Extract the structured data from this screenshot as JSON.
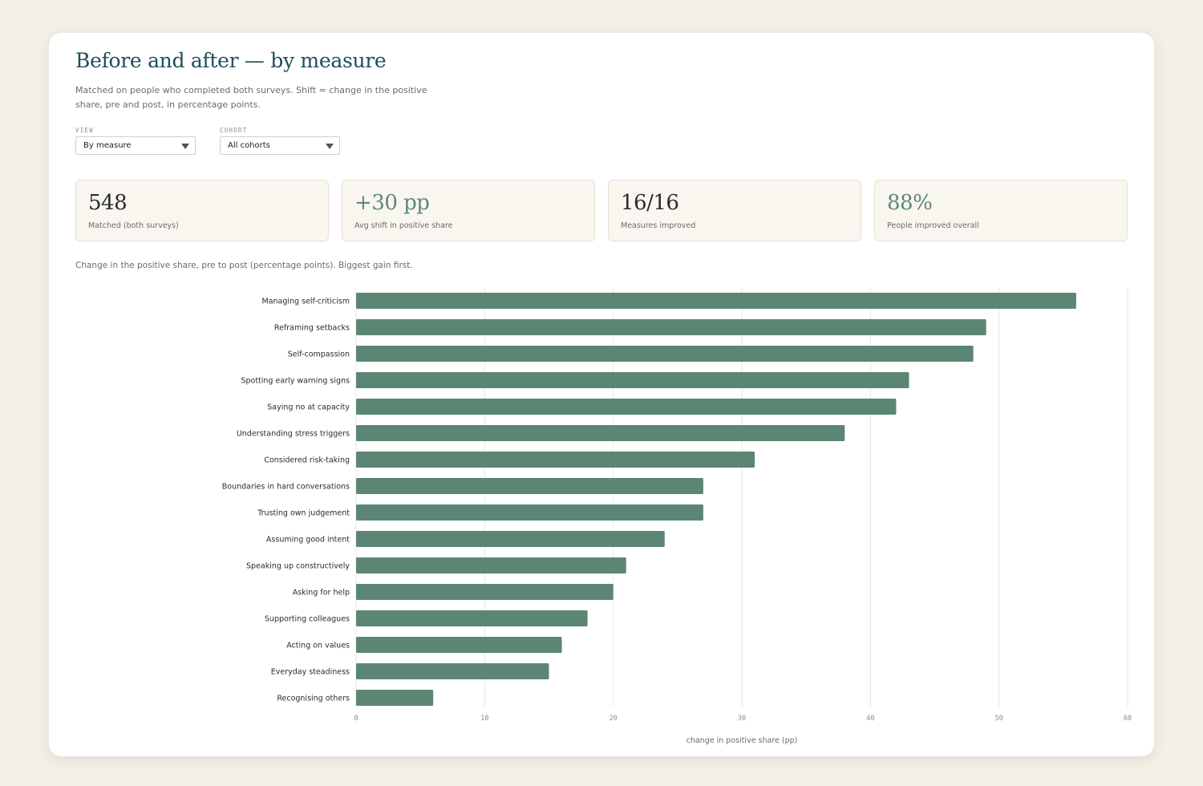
{
  "header": {
    "title": "Before and after — by measure",
    "subtitle": "Matched on people who completed both surveys. Shift = change in the positive share, pre and post, in percentage points."
  },
  "controls": {
    "view": {
      "label": "VIEW",
      "value": "By measure"
    },
    "cohort": {
      "label": "COHORT",
      "value": "All cohorts"
    }
  },
  "kpis": [
    {
      "value": "548",
      "label": "Matched (both surveys)",
      "color": "#2b2b2b"
    },
    {
      "value": "+30 pp",
      "label": "Avg shift in positive share",
      "color": "#5b8a76"
    },
    {
      "value": "16/16",
      "label": "Measures improved",
      "color": "#2b2b2b"
    },
    {
      "value": "88%",
      "label": "People improved overall",
      "color": "#5b8a76"
    }
  ],
  "chart_caption": "Change in the positive share, pre to post (percentage points). Biggest gain first.",
  "colors": {
    "bar": "#5b8673",
    "grid": "#e6e6e6",
    "accent": "#5b8a76",
    "title": "#1d4e5a"
  },
  "chart_data": {
    "type": "bar",
    "orientation": "horizontal",
    "categories": [
      "Managing self-criticism",
      "Reframing setbacks",
      "Self-compassion",
      "Spotting early warning signs",
      "Saying no at capacity",
      "Understanding stress triggers",
      "Considered risk-taking",
      "Boundaries in hard conversations",
      "Trusting own judgement",
      "Assuming good intent",
      "Speaking up constructively",
      "Asking for help",
      "Supporting colleagues",
      "Acting on values",
      "Everyday steadiness",
      "Recognising others"
    ],
    "values": [
      56,
      49,
      48,
      43,
      42,
      38,
      31,
      27,
      27,
      24,
      21,
      20,
      18,
      16,
      15,
      6
    ],
    "xlabel": "change in positive share (pp)",
    "xlim": [
      0,
      60
    ],
    "xticks": [
      0,
      10,
      20,
      30,
      40,
      50,
      60
    ],
    "grid": true
  }
}
